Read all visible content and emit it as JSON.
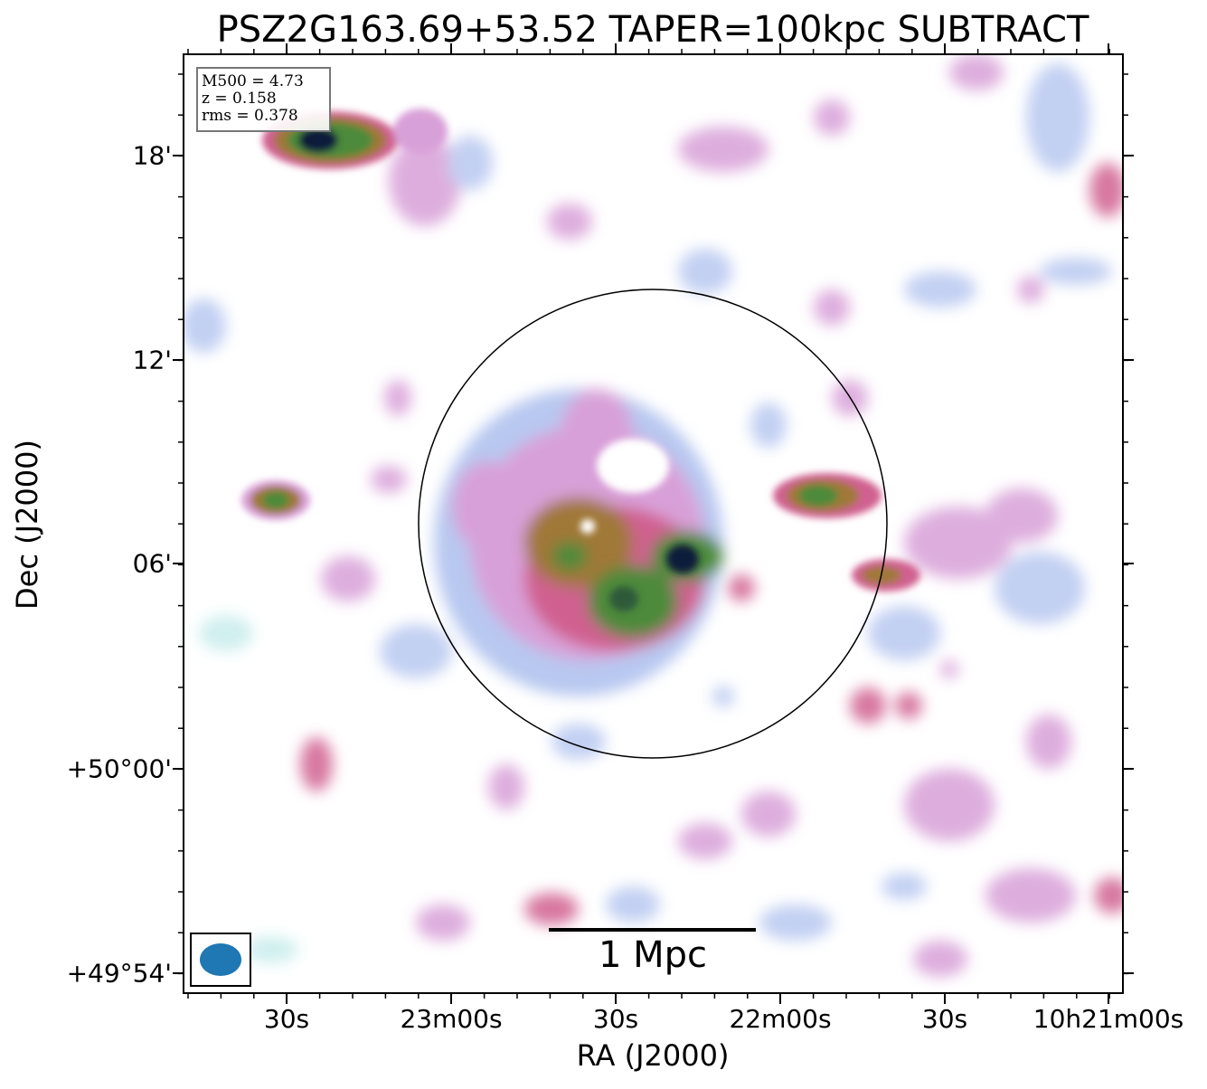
{
  "figure": {
    "title": "PSZ2G163.69+53.52 TAPER=100kpc SUBTRACT",
    "xlabel": "RA (J2000)",
    "ylabel": "Dec (J2000)",
    "x_ticks": [
      "30s",
      "23m00s",
      "30s",
      "22m00s",
      "30s",
      "10h21m00s"
    ],
    "y_ticks": [
      "18'",
      "12'",
      "06'",
      "+50°00'",
      "+49°54'"
    ],
    "info": {
      "line1": "M500 = 4.73",
      "line2": "z = 0.158",
      "line3": "rms = 0.378"
    },
    "scalebar_label": "1 Mpc",
    "colors": {
      "beam": "#1f77b4",
      "lowest": "#c8ecec",
      "low": "#b8c8f0",
      "mid": "#d8a0d8",
      "midhigh": "#d06090",
      "high": "#a07838",
      "higher": "#4e8a3a",
      "peak": "#0a1a3a"
    }
  }
}
